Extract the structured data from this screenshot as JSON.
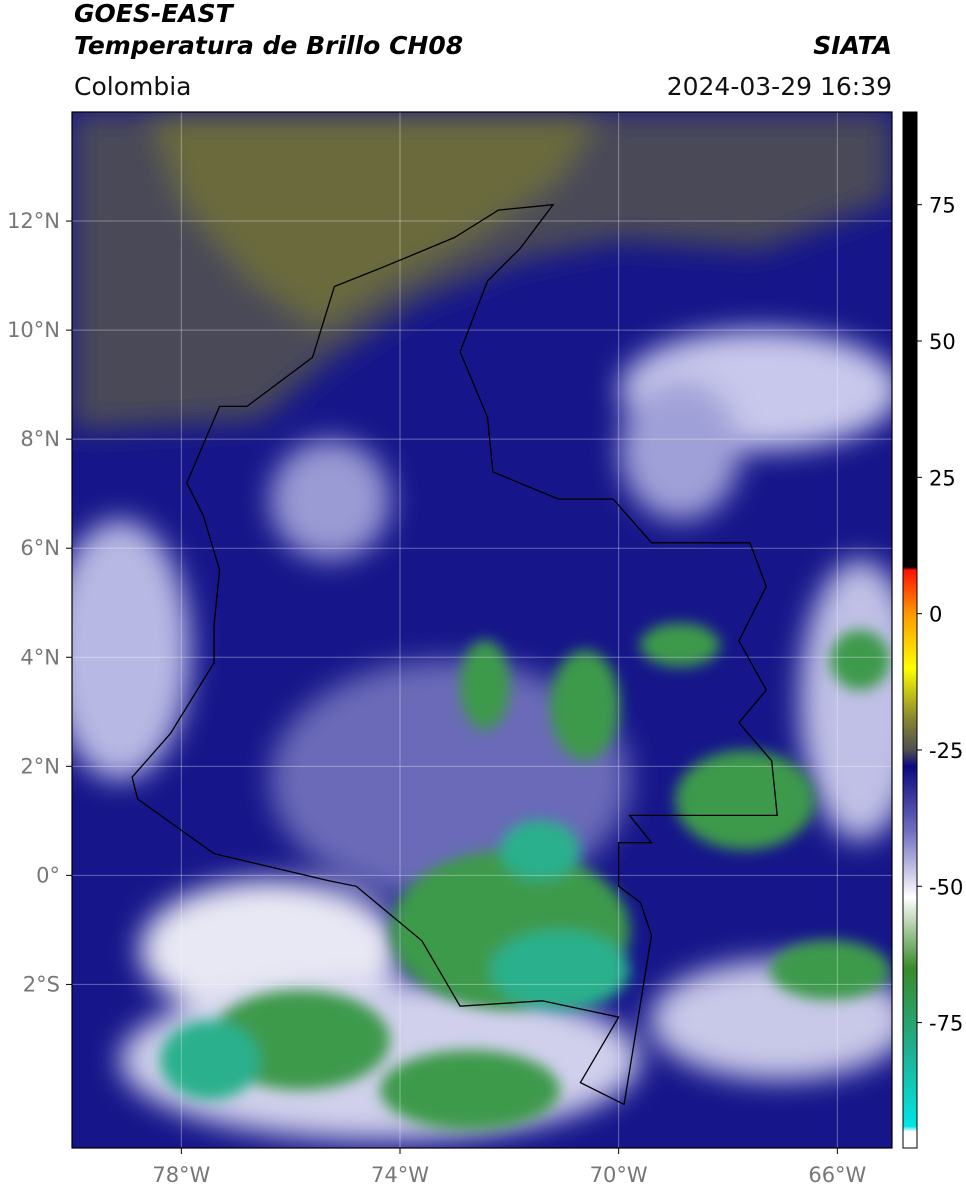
{
  "header": {
    "title": "GOES-EAST",
    "subtitle": "Temperatura de Brillo CH08",
    "region": "Colombia",
    "source": "SIATA",
    "timestamp": "2024-03-29 16:39"
  },
  "map": {
    "xlim": [
      -80,
      -65
    ],
    "ylim": [
      -5,
      14
    ],
    "xticks": [
      {
        "value": -78,
        "label": "78°W"
      },
      {
        "value": -74,
        "label": "74°W"
      },
      {
        "value": -70,
        "label": "70°W"
      },
      {
        "value": -66,
        "label": "66°W"
      }
    ],
    "yticks": [
      {
        "value": 12,
        "label": "12°N"
      },
      {
        "value": 10,
        "label": "10°N"
      },
      {
        "value": 8,
        "label": "8°N"
      },
      {
        "value": 6,
        "label": "6°N"
      },
      {
        "value": 4,
        "label": "4°N"
      },
      {
        "value": 2,
        "label": "2°N"
      },
      {
        "value": 0,
        "label": "0°"
      },
      {
        "value": -2,
        "label": "2°S"
      }
    ],
    "grid": true
  },
  "colorbar": {
    "lim": [
      -98,
      92
    ],
    "ticks": [
      75,
      50,
      25,
      0,
      -25,
      -50,
      -75
    ],
    "stops": [
      {
        "value": -98,
        "color": "#ffffff"
      },
      {
        "value": -95,
        "color": "#ffffff"
      },
      {
        "value": -94,
        "color": "#00e5e5"
      },
      {
        "value": -80,
        "color": "#20b090"
      },
      {
        "value": -65,
        "color": "#3a8a2a"
      },
      {
        "value": -52,
        "color": "#ffffff"
      },
      {
        "value": -40,
        "color": "#7070c0"
      },
      {
        "value": -28,
        "color": "#0a0a80"
      },
      {
        "value": -25,
        "color": "#505050"
      },
      {
        "value": -19,
        "color": "#8a8a30"
      },
      {
        "value": -10,
        "color": "#ffff00"
      },
      {
        "value": 0,
        "color": "#ff9900"
      },
      {
        "value": 8,
        "color": "#ff1000"
      },
      {
        "value": 8.5,
        "color": "#000000"
      },
      {
        "value": 92,
        "color": "#000000"
      }
    ]
  }
}
